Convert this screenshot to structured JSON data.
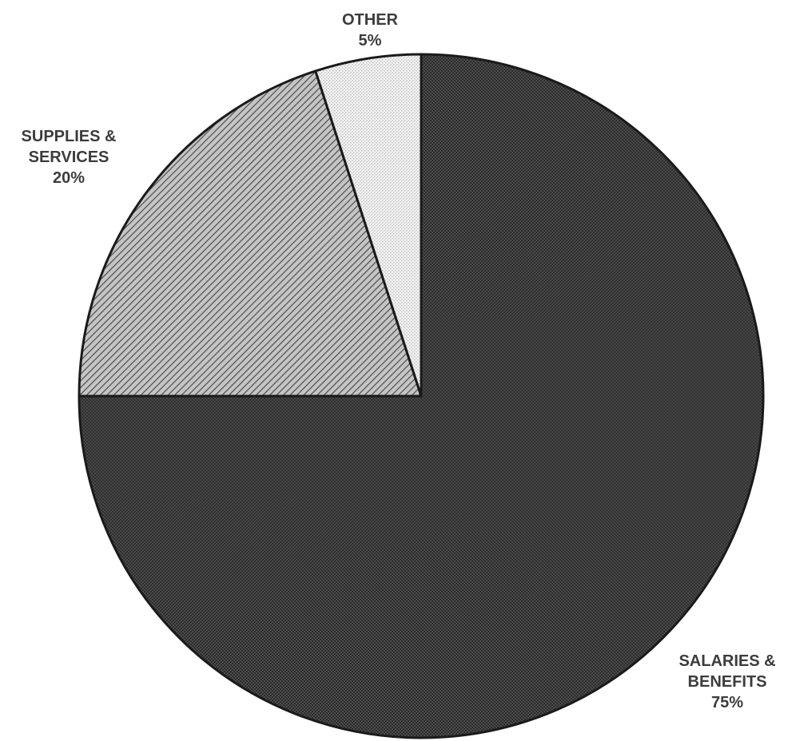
{
  "chart_data": {
    "type": "pie",
    "title": "",
    "slices": [
      {
        "key": "salaries-benefits",
        "label_lines": [
          "SALARIES &",
          "BENEFITS"
        ],
        "percent_label": "75%",
        "value": 75,
        "pattern": "dark-dots"
      },
      {
        "key": "supplies-services",
        "label_lines": [
          "SUPPLIES &",
          "SERVICES"
        ],
        "percent_label": "20%",
        "value": 20,
        "pattern": "diagonal-hatch"
      },
      {
        "key": "other",
        "label_lines": [
          "OTHER"
        ],
        "percent_label": "5%",
        "value": 5,
        "pattern": "light-dots"
      }
    ],
    "start_angle_degrees": 0,
    "direction": "clockwise",
    "legend": "none",
    "colors": {
      "dark": "#3d3d3d",
      "hatch_bg": "#bdbdbd",
      "hatch_line": "#4a4a4a",
      "light": "#eeeeee",
      "outline": "#1a1a1a",
      "text": "#3c3c3c"
    }
  }
}
